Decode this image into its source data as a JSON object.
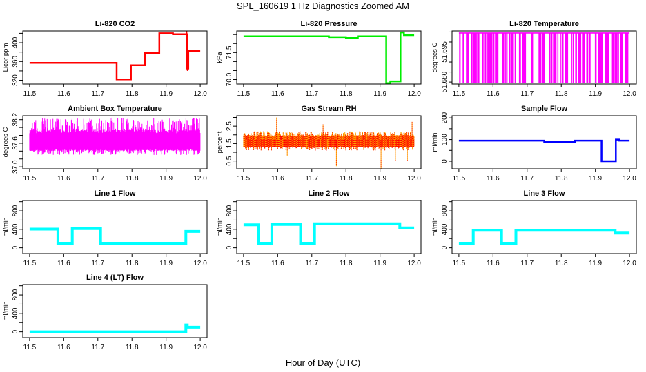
{
  "chart_data": {
    "title": "SPL_160619  1 Hz Diagnostics Zoomed AM",
    "xlabel": "Hour of Day (UTC)",
    "xlim": [
      11.5,
      12.0
    ],
    "xticks": [
      "11.5",
      "11.6",
      "11.7",
      "11.8",
      "11.9",
      "12.0"
    ],
    "panels": [
      {
        "title": "Li-820 CO2",
        "type": "line",
        "ylabel": "Licor ppm",
        "color": "#ff0000",
        "ylim": [
          312,
          425
        ],
        "yticks": [
          320,
          340,
          360,
          380,
          400,
          420
        ],
        "ylabels": [
          "320",
          "360",
          "400"
        ],
        "steps": [
          [
            11.5,
            11.755,
            357
          ],
          [
            11.755,
            11.797,
            322
          ],
          [
            11.797,
            11.838,
            352
          ],
          [
            11.838,
            11.88,
            378
          ],
          [
            11.88,
            11.92,
            420
          ],
          [
            11.92,
            11.961,
            418
          ],
          [
            11.961,
            11.965,
            345
          ],
          [
            11.965,
            12.0,
            382
          ]
        ],
        "spikes": [
          [
            11.96,
            428
          ],
          [
            11.963,
            340
          ]
        ]
      },
      {
        "title": "Li-820 Pressure",
        "type": "line",
        "ylabel": "kPa",
        "color": "#00ee00",
        "ylim": [
          69.75,
          72.7
        ],
        "yticks": [
          70.0,
          70.5,
          71.0,
          71.5,
          72.0,
          72.5
        ],
        "ylabels": [
          "70.0",
          "71.5"
        ],
        "steps": [
          [
            11.5,
            11.75,
            72.4
          ],
          [
            11.75,
            11.8,
            72.36
          ],
          [
            11.8,
            11.835,
            72.33
          ],
          [
            11.835,
            11.918,
            72.4
          ],
          [
            11.918,
            11.93,
            69.8
          ],
          [
            11.93,
            11.96,
            69.9
          ],
          [
            11.96,
            11.97,
            72.62
          ],
          [
            11.97,
            12.0,
            72.47
          ]
        ],
        "spikes": []
      },
      {
        "title": "Li-820 Temperature",
        "type": "dropout",
        "ylabel": "degrees C",
        "color": "#ff00ff",
        "ylim": [
          51.679,
          51.7055
        ],
        "yticks": [
          51.68,
          51.685,
          51.69,
          51.695,
          51.7,
          51.705
        ],
        "ylabels": [
          "51.680",
          "51.695"
        ],
        "levels": [
          51.6795,
          51.7045
        ]
      },
      {
        "title": "Ambient Box Temperature",
        "type": "noise",
        "ylabel": "degrees C",
        "color": "#ff00ff",
        "ylim": [
          36.95,
          38.3
        ],
        "yticks": [
          37.0,
          37.2,
          37.4,
          37.6,
          37.8,
          38.0,
          38.2
        ],
        "ylabels": [
          "37.0",
          "37.6",
          "38.2"
        ],
        "band": [
          37.3,
          38.25
        ],
        "core": [
          37.45,
          37.85
        ]
      },
      {
        "title": "Gas Stream RH",
        "type": "noise",
        "ylabel": "percent",
        "color": "#ffa500",
        "color2": "#ff0000",
        "ylim": [
          0.05,
          3.1
        ],
        "yticks": [
          0.5,
          1.0,
          1.5,
          2.0,
          2.5,
          3.0
        ],
        "ylabels": [
          "0.5",
          "1.5",
          "2.5"
        ],
        "band": [
          1.1,
          2.2
        ],
        "core": [
          1.35,
          1.9
        ],
        "spikes": [
          [
            11.597,
            3.0
          ],
          [
            11.733,
            2.6
          ],
          [
            11.772,
            0.2
          ],
          [
            11.903,
            0.05
          ],
          [
            11.945,
            0.5
          ],
          [
            11.98,
            0.5
          ],
          [
            11.994,
            2.75
          ],
          [
            11.628,
            0.8
          ]
        ]
      },
      {
        "title": "Sample Flow",
        "type": "line",
        "ylabel": "ml/min",
        "color": "#0000ff",
        "ylim": [
          -35,
          210
        ],
        "yticks": [
          0,
          50,
          100,
          150,
          200
        ],
        "ylabels": [
          "0",
          "100",
          "200"
        ],
        "steps": [
          [
            11.5,
            11.75,
            95
          ],
          [
            11.75,
            11.84,
            90
          ],
          [
            11.84,
            11.918,
            95
          ],
          [
            11.918,
            11.96,
            0
          ],
          [
            11.96,
            11.97,
            100
          ],
          [
            11.97,
            12.0,
            95
          ]
        ],
        "spikes": []
      },
      {
        "title": "Line 1 Flow",
        "type": "line",
        "ylabel": "ml/min",
        "color": "#00ffff",
        "ylim": [
          -125,
          1025
        ],
        "yticks": [
          0,
          200,
          400,
          600,
          800,
          1000
        ],
        "ylabels": [
          "0",
          "400",
          "800"
        ],
        "steps": [
          [
            11.5,
            11.583,
            405
          ],
          [
            11.583,
            11.625,
            85
          ],
          [
            11.625,
            11.708,
            415
          ],
          [
            11.708,
            11.958,
            85
          ],
          [
            11.958,
            12.0,
            355
          ]
        ],
        "spikes": []
      },
      {
        "title": "Line 2 Flow",
        "type": "line",
        "ylabel": "ml/min",
        "color": "#00ffff",
        "ylim": [
          -125,
          1025
        ],
        "yticks": [
          0,
          200,
          400,
          600,
          800,
          1000
        ],
        "ylabels": [
          "0",
          "400",
          "800"
        ],
        "steps": [
          [
            11.5,
            11.543,
            500
          ],
          [
            11.543,
            11.583,
            85
          ],
          [
            11.583,
            11.667,
            505
          ],
          [
            11.667,
            11.708,
            85
          ],
          [
            11.708,
            11.958,
            520
          ],
          [
            11.958,
            12.0,
            430
          ]
        ],
        "spikes": []
      },
      {
        "title": "Line 3 Flow",
        "type": "line",
        "ylabel": "ml/min",
        "color": "#00ffff",
        "ylim": [
          -125,
          1025
        ],
        "yticks": [
          0,
          200,
          400,
          600,
          800,
          1000
        ],
        "ylabels": [
          "0",
          "400",
          "800"
        ],
        "steps": [
          [
            11.5,
            11.542,
            85
          ],
          [
            11.542,
            11.625,
            380
          ],
          [
            11.625,
            11.667,
            85
          ],
          [
            11.667,
            11.958,
            380
          ],
          [
            11.958,
            12.0,
            320
          ]
        ],
        "spikes": []
      },
      {
        "title": "Line 4 (LT) Flow",
        "type": "line",
        "ylabel": "ml/min",
        "color": "#00ffff",
        "ylim": [
          -125,
          1025
        ],
        "yticks": [
          0,
          200,
          400,
          600,
          800,
          1000
        ],
        "ylabels": [
          "0",
          "400",
          "800"
        ],
        "steps": [
          [
            11.5,
            11.958,
            0
          ],
          [
            11.958,
            11.962,
            150
          ],
          [
            11.962,
            12.0,
            100
          ]
        ],
        "spikes": []
      }
    ]
  }
}
